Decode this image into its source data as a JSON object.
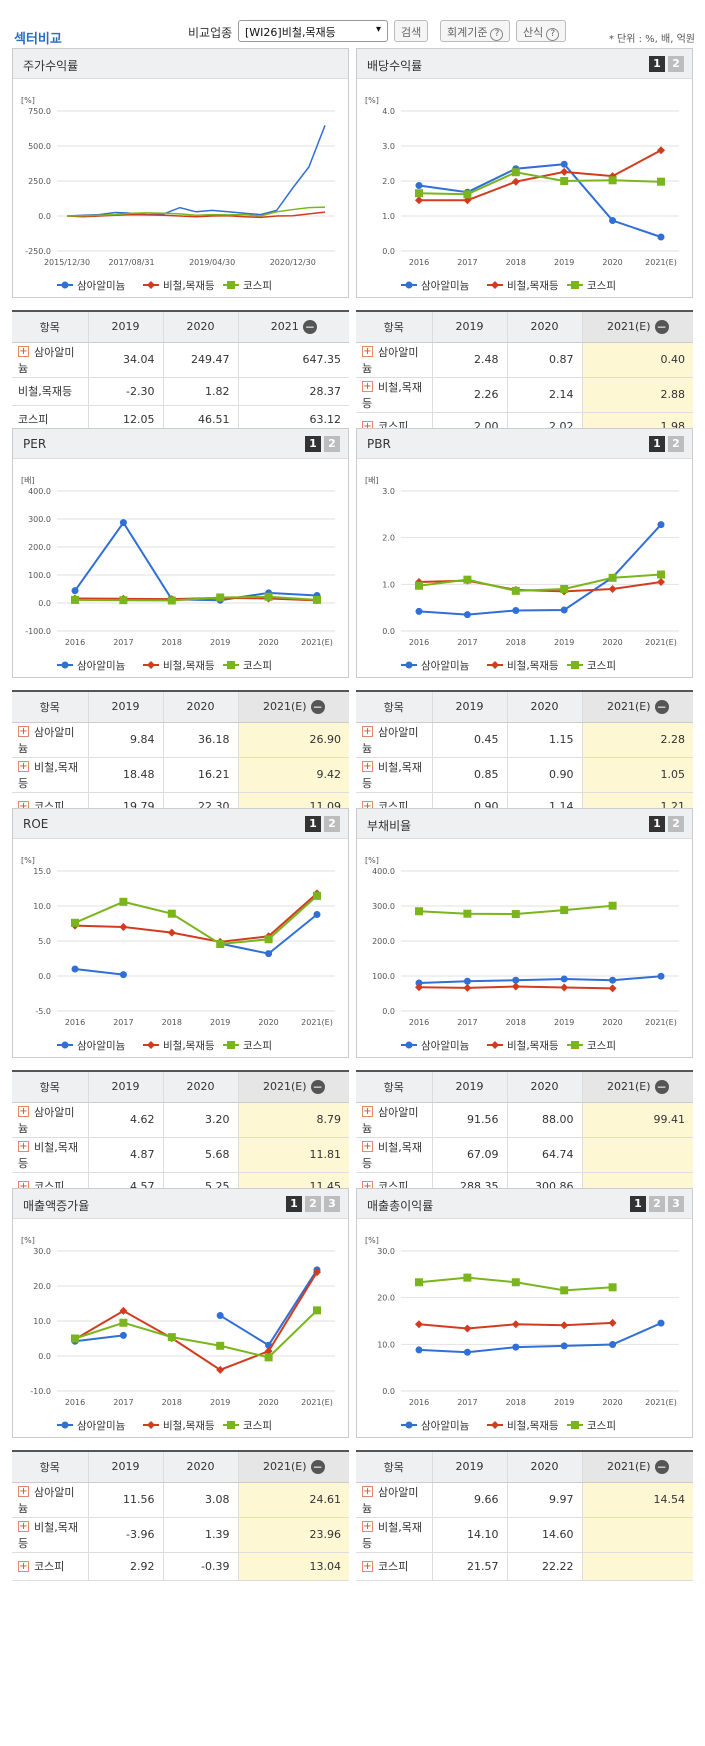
{
  "header": {
    "section_title": "섹터비교",
    "compare_label": "비교업종",
    "compare_select": "[WI26]비철,목재등",
    "search_btn": "검색",
    "accounting_btn": "회계기준",
    "formula_btn": "산식",
    "unit_note": "* 단위 : %, 배, 억원"
  },
  "colors": {
    "company": "#2f6fd6",
    "industry": "#d23c1e",
    "kospi": "#7ab51d"
  },
  "legend": [
    "삼아알미늄",
    "비철,목재등",
    "코스피"
  ],
  "panels": [
    {
      "id": "stock",
      "title": "주가수익률",
      "pager": [],
      "unit": "[%]",
      "yticks": [
        "750.0",
        "500.0",
        "250.0",
        "0.0",
        "-250.0"
      ],
      "xticks": [
        "2015/12/30",
        "2017/08/31",
        "2019/04/30",
        "2020/12/30"
      ],
      "table": {
        "headers": [
          "항목",
          "2019",
          "2020",
          "2021"
        ],
        "rows": [
          {
            "label": "삼아알미늄",
            "plus": true,
            "v": [
              "34.04",
              "249.47",
              "647.35"
            ]
          },
          {
            "label": "비철,목재등",
            "plus": false,
            "v": [
              "-2.30",
              "1.82",
              "28.37"
            ]
          },
          {
            "label": "코스피",
            "plus": false,
            "v": [
              "12.05",
              "46.51",
              "63.12"
            ]
          }
        ],
        "hl": false
      }
    },
    {
      "id": "dividend",
      "title": "배당수익률",
      "pager": [
        "1",
        "2"
      ],
      "unit": "[%]",
      "yticks": [
        "4.0",
        "3.0",
        "2.0",
        "1.0",
        "0.0"
      ],
      "xticks": [
        "2016",
        "2017",
        "2018",
        "2019",
        "2020",
        "2021(E)"
      ],
      "table": {
        "headers": [
          "항목",
          "2019",
          "2020",
          "2021(E)"
        ],
        "rows": [
          {
            "label": "삼아알미늄",
            "plus": true,
            "v": [
              "2.48",
              "0.87",
              "0.40"
            ]
          },
          {
            "label": "비철,목재등",
            "plus": true,
            "v": [
              "2.26",
              "2.14",
              "2.88"
            ]
          },
          {
            "label": "코스피",
            "plus": true,
            "v": [
              "2.00",
              "2.02",
              "1.98"
            ]
          }
        ],
        "hl": true
      }
    },
    {
      "id": "per",
      "title": "PER",
      "pager": [
        "1",
        "2"
      ],
      "unit": "[배]",
      "yticks": [
        "400.0",
        "300.0",
        "200.0",
        "100.0",
        "0.0",
        "-100.0"
      ],
      "xticks": [
        "2016",
        "2017",
        "2018",
        "2019",
        "2020",
        "2021(E)"
      ],
      "table": {
        "headers": [
          "항목",
          "2019",
          "2020",
          "2021(E)"
        ],
        "rows": [
          {
            "label": "삼아알미늄",
            "plus": true,
            "v": [
              "9.84",
              "36.18",
              "26.90"
            ]
          },
          {
            "label": "비철,목재등",
            "plus": true,
            "v": [
              "18.48",
              "16.21",
              "9.42"
            ]
          },
          {
            "label": "코스피",
            "plus": true,
            "v": [
              "19.79",
              "22.30",
              "11.09"
            ]
          }
        ],
        "hl": true
      }
    },
    {
      "id": "pbr",
      "title": "PBR",
      "pager": [
        "1",
        "2"
      ],
      "unit": "[배]",
      "yticks": [
        "3.0",
        "2.0",
        "1.0",
        "0.0"
      ],
      "xticks": [
        "2016",
        "2017",
        "2018",
        "2019",
        "2020",
        "2021(E)"
      ],
      "table": {
        "headers": [
          "항목",
          "2019",
          "2020",
          "2021(E)"
        ],
        "rows": [
          {
            "label": "삼아알미늄",
            "plus": true,
            "v": [
              "0.45",
              "1.15",
              "2.28"
            ]
          },
          {
            "label": "비철,목재등",
            "plus": true,
            "v": [
              "0.85",
              "0.90",
              "1.05"
            ]
          },
          {
            "label": "코스피",
            "plus": true,
            "v": [
              "0.90",
              "1.14",
              "1.21"
            ]
          }
        ],
        "hl": true
      }
    },
    {
      "id": "roe",
      "title": "ROE",
      "pager": [
        "1",
        "2"
      ],
      "unit": "[%]",
      "yticks": [
        "15.0",
        "10.0",
        "5.0",
        "0.0",
        "-5.0"
      ],
      "xticks": [
        "2016",
        "2017",
        "2018",
        "2019",
        "2020",
        "2021(E)"
      ],
      "table": {
        "headers": [
          "항목",
          "2019",
          "2020",
          "2021(E)"
        ],
        "rows": [
          {
            "label": "삼아알미늄",
            "plus": true,
            "v": [
              "4.62",
              "3.20",
              "8.79"
            ]
          },
          {
            "label": "비철,목재등",
            "plus": true,
            "v": [
              "4.87",
              "5.68",
              "11.81"
            ]
          },
          {
            "label": "코스피",
            "plus": true,
            "v": [
              "4.57",
              "5.25",
              "11.45"
            ]
          }
        ],
        "hl": true
      }
    },
    {
      "id": "debt",
      "title": "부채비율",
      "pager": [
        "1",
        "2"
      ],
      "unit": "[%]",
      "yticks": [
        "400.0",
        "300.0",
        "200.0",
        "100.0",
        "0.0"
      ],
      "xticks": [
        "2016",
        "2017",
        "2018",
        "2019",
        "2020",
        "2021(E)"
      ],
      "table": {
        "headers": [
          "항목",
          "2019",
          "2020",
          "2021(E)"
        ],
        "rows": [
          {
            "label": "삼아알미늄",
            "plus": true,
            "v": [
              "91.56",
              "88.00",
              "99.41"
            ]
          },
          {
            "label": "비철,목재등",
            "plus": true,
            "v": [
              "67.09",
              "64.74",
              ""
            ]
          },
          {
            "label": "코스피",
            "plus": true,
            "v": [
              "288.35",
              "300.86",
              ""
            ]
          }
        ],
        "hl": true
      }
    },
    {
      "id": "sales_growth",
      "title": "매출액증가율",
      "pager": [
        "1",
        "2",
        "3"
      ],
      "unit": "[%]",
      "yticks": [
        "30.0",
        "20.0",
        "10.0",
        "0.0",
        "-10.0"
      ],
      "xticks": [
        "2016",
        "2017",
        "2018",
        "2019",
        "2020",
        "2021(E)"
      ],
      "table": {
        "headers": [
          "항목",
          "2019",
          "2020",
          "2021(E)"
        ],
        "rows": [
          {
            "label": "삼아알미늄",
            "plus": true,
            "v": [
              "11.56",
              "3.08",
              "24.61"
            ]
          },
          {
            "label": "비철,목재등",
            "plus": true,
            "v": [
              "-3.96",
              "1.39",
              "23.96"
            ]
          },
          {
            "label": "코스피",
            "plus": true,
            "v": [
              "2.92",
              "-0.39",
              "13.04"
            ]
          }
        ],
        "hl": true
      }
    },
    {
      "id": "gross_margin",
      "title": "매출총이익률",
      "pager": [
        "1",
        "2",
        "3"
      ],
      "unit": "[%]",
      "yticks": [
        "30.0",
        "20.0",
        "10.0",
        "0.0"
      ],
      "xticks": [
        "2016",
        "2017",
        "2018",
        "2019",
        "2020",
        "2021(E)"
      ],
      "table": {
        "headers": [
          "항목",
          "2019",
          "2020",
          "2021(E)"
        ],
        "rows": [
          {
            "label": "삼아알미늄",
            "plus": true,
            "v": [
              "9.66",
              "9.97",
              "14.54"
            ]
          },
          {
            "label": "비철,목재등",
            "plus": true,
            "v": [
              "14.10",
              "14.60",
              ""
            ]
          },
          {
            "label": "코스피",
            "plus": true,
            "v": [
              "21.57",
              "22.22",
              ""
            ]
          }
        ],
        "hl": true
      }
    }
  ],
  "chart_data": [
    {
      "type": "line",
      "title": "주가수익률",
      "x": [
        "2015/12/30",
        "2016/06",
        "2016/12",
        "2017/04",
        "2017/08/31",
        "2017/12",
        "2018/04",
        "2018/08",
        "2018/12",
        "2019/04/30",
        "2019/08",
        "2019/12",
        "2020/04",
        "2020/08",
        "2020/12/30",
        "2021/03",
        "2021/06"
      ],
      "ylim": [
        -250,
        750
      ],
      "series": [
        {
          "name": "삼아알미늄",
          "values": [
            0,
            5,
            10,
            25,
            20,
            10,
            15,
            60,
            30,
            40,
            30,
            20,
            10,
            40,
            200,
            350,
            647
          ]
        },
        {
          "name": "비철,목재등",
          "values": [
            0,
            -5,
            0,
            5,
            10,
            8,
            5,
            0,
            -5,
            0,
            2,
            -5,
            -10,
            0,
            2,
            15,
            28
          ]
        },
        {
          "name": "코스피",
          "values": [
            0,
            2,
            5,
            10,
            20,
            22,
            20,
            15,
            5,
            10,
            8,
            10,
            0,
            30,
            46,
            60,
            63
          ]
        }
      ]
    },
    {
      "type": "line",
      "title": "배당수익률",
      "categories": [
        "2016",
        "2017",
        "2018",
        "2019",
        "2020",
        "2021(E)"
      ],
      "ylim": [
        0,
        4
      ],
      "series": [
        {
          "name": "삼아알미늄",
          "values": [
            1.87,
            1.68,
            2.35,
            2.48,
            0.87,
            0.4
          ]
        },
        {
          "name": "비철,목재등",
          "values": [
            1.45,
            1.45,
            1.98,
            2.26,
            2.14,
            2.88
          ]
        },
        {
          "name": "코스피",
          "values": [
            1.65,
            1.62,
            2.25,
            2.0,
            2.02,
            1.98
          ]
        }
      ]
    },
    {
      "type": "line",
      "title": "PER",
      "categories": [
        "2016",
        "2017",
        "2018",
        "2019",
        "2020",
        "2021(E)"
      ],
      "ylim": [
        -100,
        400
      ],
      "series": [
        {
          "name": "삼아알미늄",
          "values": [
            44,
            287,
            13,
            9.84,
            36.18,
            26.9
          ]
        },
        {
          "name": "비철,목재등",
          "values": [
            16,
            15,
            14,
            18.48,
            16.21,
            9.42
          ]
        },
        {
          "name": "코스피",
          "values": [
            11,
            10,
            9,
            19.79,
            22.3,
            11.09
          ]
        }
      ]
    },
    {
      "type": "line",
      "title": "PBR",
      "categories": [
        "2016",
        "2017",
        "2018",
        "2019",
        "2020",
        "2021(E)"
      ],
      "ylim": [
        0,
        3
      ],
      "series": [
        {
          "name": "삼아알미늄",
          "values": [
            0.42,
            0.35,
            0.44,
            0.45,
            1.15,
            2.28
          ]
        },
        {
          "name": "비철,목재등",
          "values": [
            1.05,
            1.08,
            0.88,
            0.85,
            0.9,
            1.05
          ]
        },
        {
          "name": "코스피",
          "values": [
            0.97,
            1.1,
            0.86,
            0.9,
            1.14,
            1.21
          ]
        }
      ]
    },
    {
      "type": "line",
      "title": "ROE",
      "categories": [
        "2016",
        "2017",
        "2018",
        "2019",
        "2020",
        "2021(E)"
      ],
      "ylim": [
        -5,
        15
      ],
      "series": [
        {
          "name": "삼아알미늄",
          "values": [
            1.0,
            0.2,
            null,
            4.62,
            3.2,
            8.79
          ]
        },
        {
          "name": "비철,목재등",
          "values": [
            7.2,
            7.0,
            6.2,
            4.87,
            5.68,
            11.81
          ]
        },
        {
          "name": "코스피",
          "values": [
            7.6,
            10.6,
            8.9,
            4.57,
            5.25,
            11.45
          ]
        }
      ]
    },
    {
      "type": "line",
      "title": "부채비율",
      "categories": [
        "2016",
        "2017",
        "2018",
        "2019",
        "2020",
        "2021(E)"
      ],
      "ylim": [
        0,
        400
      ],
      "series": [
        {
          "name": "삼아알미늄",
          "values": [
            80,
            85,
            88,
            91.56,
            88.0,
            99.41
          ]
        },
        {
          "name": "비철,목재등",
          "values": [
            68,
            66,
            70,
            67.09,
            64.74,
            null
          ]
        },
        {
          "name": "코스피",
          "values": [
            285,
            278,
            277,
            288.35,
            300.86,
            null
          ]
        }
      ]
    },
    {
      "type": "line",
      "title": "매출액증가율",
      "categories": [
        "2016",
        "2017",
        "2018",
        "2019",
        "2020",
        "2021(E)"
      ],
      "ylim": [
        -10,
        30
      ],
      "series": [
        {
          "name": "삼아알미늄",
          "values": [
            4.2,
            5.9,
            null,
            11.56,
            3.08,
            24.61
          ]
        },
        {
          "name": "비철,목재등",
          "values": [
            4.8,
            12.9,
            5.1,
            -3.96,
            1.39,
            23.96
          ]
        },
        {
          "name": "코스피",
          "values": [
            5.0,
            9.5,
            5.4,
            2.92,
            -0.39,
            13.04
          ]
        }
      ]
    },
    {
      "type": "line",
      "title": "매출총이익률",
      "categories": [
        "2016",
        "2017",
        "2018",
        "2019",
        "2020",
        "2021(E)"
      ],
      "ylim": [
        0,
        30
      ],
      "series": [
        {
          "name": "삼아알미늄",
          "values": [
            8.8,
            8.3,
            9.4,
            9.66,
            9.97,
            14.54
          ]
        },
        {
          "name": "비철,목재등",
          "values": [
            14.3,
            13.4,
            14.3,
            14.1,
            14.6,
            null
          ]
        },
        {
          "name": "코스피",
          "values": [
            23.3,
            24.3,
            23.3,
            21.57,
            22.22,
            null
          ]
        }
      ]
    }
  ]
}
